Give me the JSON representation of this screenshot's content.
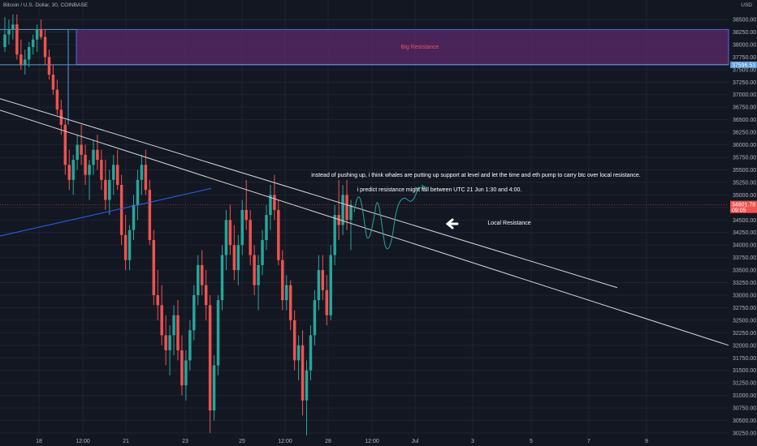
{
  "header": {
    "symbol_line": "Bitcoin / U.S. Dollar, 30, COINBASE",
    "currency": "USD"
  },
  "colors": {
    "background": "#131722",
    "grid": "#1f2330",
    "up_candle": "#26a69a",
    "down_candle": "#ef5350",
    "zone_fill": "#5c2a6b",
    "zone_border": "#4d6fd6",
    "trendline": "#d1d4dc",
    "support_line": "#2962ff",
    "projection": "#26a69a",
    "price_tag_bg": "#ef5350",
    "level_tag_bg": "#5b9bd5"
  },
  "chart_data": {
    "type": "candlestick",
    "y_axis": {
      "min": 30250,
      "max": 38600,
      "ticks": [
        "38500.00",
        "38250.00",
        "38000.00",
        "37750.00",
        "37500.00",
        "37250.00",
        "37000.00",
        "36750.00",
        "36500.00",
        "36250.00",
        "36000.00",
        "35750.00",
        "35500.00",
        "35250.00",
        "35000.00",
        "34750.00",
        "34500.00",
        "34250.00",
        "34000.00",
        "33750.00",
        "33500.00",
        "33250.00",
        "33000.00",
        "32750.00",
        "32500.00",
        "32250.00",
        "32000.00",
        "31750.00",
        "31500.00",
        "31250.00",
        "31000.00",
        "30750.00",
        "30500.00",
        "30250.00"
      ]
    },
    "x_axis": {
      "ticks": [
        "18",
        "12:00",
        "21",
        "23",
        "25",
        "12:00",
        "28",
        "12:00",
        "Jul",
        "3",
        "5",
        "7",
        "9"
      ]
    },
    "resistance_zone": {
      "label": "Big Resistance",
      "price_top": 38300,
      "price_bottom": 37600
    },
    "level_tag": {
      "text": "37596.53",
      "price": 37596.53
    },
    "current_price": {
      "price_text": "34801.78",
      "countdown": "09:05",
      "price": 34801.78
    },
    "annotations": [
      "instead of pushing up, i think whales are putting up support at level and let the time and eth pump to carry btc over local resistance.",
      "i predict resistance might fall between UTC 21 Jun  1:30 and 4:00.",
      "Local Resistance"
    ],
    "trendlines": [
      {
        "name": "upper-descending",
        "from_price": 36920,
        "to_price": 33150
      },
      {
        "name": "lower-descending",
        "from_price": 36690,
        "to_price": 32000
      },
      {
        "name": "rising-support",
        "from_price": 34180,
        "to_price": 35130
      }
    ],
    "candles": [
      [
        37950,
        38550,
        37850,
        38200
      ],
      [
        38200,
        38500,
        38000,
        38300
      ],
      [
        38300,
        38600,
        38100,
        38400
      ],
      [
        38400,
        38600,
        37700,
        37800
      ],
      [
        37800,
        38100,
        37500,
        37600
      ],
      [
        37600,
        37900,
        37400,
        37700
      ],
      [
        37700,
        38050,
        37550,
        37950
      ],
      [
        37950,
        38200,
        37800,
        38100
      ],
      [
        38100,
        38400,
        37850,
        38300
      ],
      [
        38300,
        38500,
        38100,
        38150
      ],
      [
        38150,
        38300,
        37600,
        37750
      ],
      [
        37750,
        37900,
        37300,
        37400
      ],
      [
        37400,
        37600,
        37000,
        37100
      ],
      [
        37100,
        37300,
        36600,
        36700
      ],
      [
        36700,
        36900,
        36200,
        36400
      ],
      [
        36400,
        36500,
        35400,
        35600
      ],
      [
        35600,
        35900,
        35100,
        35300
      ],
      [
        35300,
        35800,
        35000,
        35700
      ],
      [
        35700,
        36200,
        35500,
        36000
      ],
      [
        36000,
        36400,
        35600,
        35800
      ],
      [
        35800,
        36000,
        35200,
        35400
      ],
      [
        35400,
        35700,
        34900,
        35600
      ],
      [
        35600,
        36100,
        35400,
        35900
      ],
      [
        35900,
        36200,
        35500,
        35700
      ],
      [
        35700,
        35900,
        35100,
        35300
      ],
      [
        35300,
        35700,
        34700,
        34900
      ],
      [
        34900,
        35500,
        34600,
        35300
      ],
      [
        35300,
        35800,
        35000,
        35600
      ],
      [
        35600,
        35900,
        35100,
        35200
      ],
      [
        35200,
        35400,
        34000,
        34200
      ],
      [
        34200,
        34600,
        33500,
        33700
      ],
      [
        33700,
        34400,
        33500,
        34300
      ],
      [
        34300,
        35000,
        34100,
        34800
      ],
      [
        34800,
        35500,
        34500,
        35300
      ],
      [
        35300,
        35800,
        35000,
        35600
      ],
      [
        35600,
        35900,
        35000,
        35100
      ],
      [
        35100,
        35300,
        34000,
        34100
      ],
      [
        34100,
        34300,
        32800,
        33000
      ],
      [
        33000,
        33500,
        32500,
        32800
      ],
      [
        32800,
        33200,
        32000,
        32200
      ],
      [
        32200,
        32600,
        31600,
        31900
      ],
      [
        31900,
        32400,
        31400,
        32200
      ],
      [
        32200,
        32800,
        31800,
        32600
      ],
      [
        32600,
        32900,
        31700,
        31900
      ],
      [
        31900,
        32200,
        31000,
        31200
      ],
      [
        31200,
        31900,
        30900,
        31700
      ],
      [
        31700,
        32500,
        31500,
        32300
      ],
      [
        32300,
        33200,
        32100,
        33000
      ],
      [
        33000,
        33800,
        32800,
        33600
      ],
      [
        33600,
        33900,
        33000,
        33200
      ],
      [
        33200,
        33500,
        32500,
        32800
      ],
      [
        32800,
        33000,
        30250,
        30700
      ],
      [
        30700,
        31800,
        30500,
        31600
      ],
      [
        31600,
        33000,
        31400,
        32900
      ],
      [
        32900,
        34000,
        32700,
        33800
      ],
      [
        33800,
        34700,
        33500,
        34500
      ],
      [
        34500,
        34800,
        33800,
        34000
      ],
      [
        34000,
        34400,
        33300,
        33500
      ],
      [
        33500,
        34200,
        33200,
        34000
      ],
      [
        34000,
        34900,
        33800,
        34700
      ],
      [
        34700,
        35300,
        34300,
        34500
      ],
      [
        34500,
        34700,
        33600,
        33800
      ],
      [
        33800,
        34000,
        33000,
        33200
      ],
      [
        33200,
        33800,
        32700,
        33600
      ],
      [
        33600,
        34300,
        33400,
        34100
      ],
      [
        34100,
        34800,
        33900,
        34600
      ],
      [
        34600,
        35200,
        34300,
        35000
      ],
      [
        35000,
        35400,
        34500,
        34700
      ],
      [
        34700,
        34900,
        33600,
        33700
      ],
      [
        33700,
        33900,
        32700,
        32900
      ],
      [
        32900,
        33400,
        32700,
        33200
      ],
      [
        33200,
        33300,
        32300,
        32500
      ],
      [
        32500,
        32700,
        31500,
        31700
      ],
      [
        31700,
        32200,
        31300,
        32000
      ],
      [
        32000,
        32300,
        30600,
        30900
      ],
      [
        30900,
        31700,
        30200,
        31500
      ],
      [
        31500,
        32400,
        31300,
        32200
      ],
      [
        32200,
        33100,
        32000,
        32900
      ],
      [
        32900,
        33800,
        32700,
        33500
      ],
      [
        33500,
        33800,
        32900,
        33100
      ],
      [
        33100,
        33400,
        32400,
        32600
      ],
      [
        32600,
        34000,
        32500,
        33800
      ],
      [
        33800,
        34800,
        33600,
        34600
      ],
      [
        34600,
        35300,
        34100,
        34400
      ],
      [
        34400,
        35200,
        34200,
        35000
      ],
      [
        35000,
        35300,
        34300,
        34500
      ],
      [
        34500,
        34900,
        33900,
        34801.78
      ]
    ],
    "projection_path": [
      [
        34650,
        "start"
      ],
      [
        34900,
        ""
      ],
      [
        34300,
        ""
      ],
      [
        35200,
        ""
      ],
      [
        34100,
        ""
      ],
      [
        35000,
        ""
      ],
      [
        34200,
        ""
      ],
      [
        35100,
        ""
      ],
      [
        35000,
        "arrow"
      ]
    ]
  }
}
